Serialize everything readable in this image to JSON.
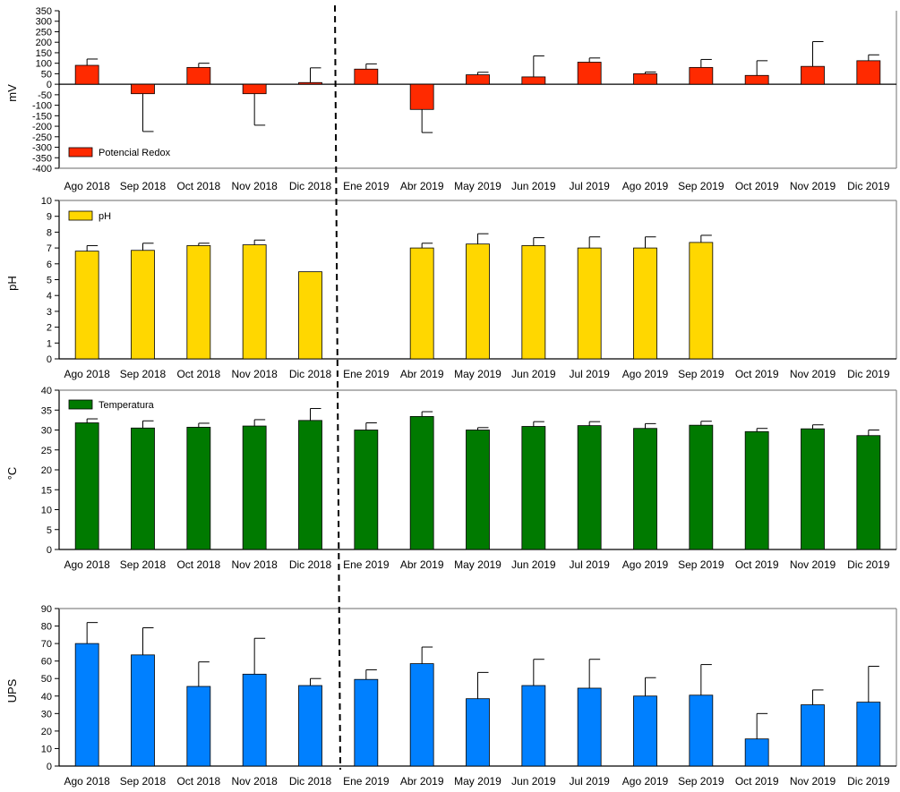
{
  "chart_data": [
    {
      "type": "bar",
      "ylabel": "mV",
      "legend": "Potencial Redox",
      "legend_position": "bottom-left",
      "color": "#ff2a00",
      "ylim": [
        -400,
        350
      ],
      "yticks": [
        -400,
        -350,
        -300,
        -250,
        -200,
        -150,
        -100,
        -50,
        0,
        50,
        100,
        150,
        200,
        250,
        300,
        350
      ],
      "categories": [
        "Ago 2018",
        "Sep 2018",
        "Oct 2018",
        "Nov 2018",
        "Dic 2018",
        "Ene 2019",
        "Abr 2019",
        "May 2019",
        "Jun 2019",
        "Jul 2019",
        "Ago 2019",
        "Sep 2019",
        "Oct 2019",
        "Nov 2019",
        "Dic 2019"
      ],
      "values": [
        90,
        -45,
        80,
        -45,
        8,
        72,
        -120,
        45,
        35,
        105,
        50,
        80,
        42,
        85,
        112
      ],
      "errors": [
        30,
        180,
        20,
        150,
        70,
        25,
        110,
        12,
        100,
        20,
        8,
        38,
        70,
        118,
        28
      ]
    },
    {
      "type": "bar",
      "ylabel": "pH",
      "legend": "pH",
      "legend_position": "top-left",
      "color": "#ffd700",
      "ylim": [
        0,
        10
      ],
      "yticks": [
        0,
        1,
        2,
        3,
        4,
        5,
        6,
        7,
        8,
        9,
        10
      ],
      "categories": [
        "Ago 2018",
        "Sep 2018",
        "Oct 2018",
        "Nov 2018",
        "Dic 2018",
        "Ene 2019",
        "Abr 2019",
        "May 2019",
        "Jun 2019",
        "Jul 2019",
        "Ago 2019",
        "Sep 2019",
        "Oct 2019",
        "Nov 2019",
        "Dic 2019"
      ],
      "values": [
        6.8,
        6.85,
        7.15,
        7.2,
        5.5,
        null,
        7.0,
        7.25,
        7.15,
        7.0,
        7.0,
        7.35,
        null,
        null,
        null
      ],
      "errors": [
        0.35,
        0.45,
        0.15,
        0.3,
        null,
        null,
        0.3,
        0.65,
        0.5,
        0.7,
        0.7,
        0.45,
        null,
        null,
        null
      ]
    },
    {
      "type": "bar",
      "ylabel": "°C",
      "legend": "Temperatura",
      "legend_position": "top-left",
      "color": "#007a00",
      "ylim": [
        0,
        40
      ],
      "yticks": [
        0,
        5,
        10,
        15,
        20,
        25,
        30,
        35,
        40
      ],
      "categories": [
        "Ago 2018",
        "Sep 2018",
        "Oct 2018",
        "Nov 2018",
        "Dic 2018",
        "Ene 2019",
        "Abr 2019",
        "May 2019",
        "Jun 2019",
        "Jul 2019",
        "Ago 2019",
        "Sep 2019",
        "Oct 2019",
        "Nov 2019",
        "Dic 2019"
      ],
      "values": [
        31.8,
        30.5,
        30.7,
        31.0,
        32.4,
        30.0,
        33.4,
        30.0,
        30.9,
        31.1,
        30.4,
        31.2,
        29.6,
        30.3,
        28.6
      ],
      "errors": [
        1.0,
        1.8,
        1.0,
        1.6,
        3.0,
        1.8,
        1.2,
        0.6,
        1.2,
        1.0,
        1.2,
        1.0,
        0.8,
        1.0,
        1.4
      ]
    },
    {
      "type": "bar",
      "ylabel": "UPS",
      "legend": "",
      "color": "#0080ff",
      "ylim": [
        0,
        90
      ],
      "yticks": [
        0,
        10,
        20,
        30,
        40,
        50,
        60,
        70,
        80,
        90
      ],
      "categories": [
        "Ago 2018",
        "Sep 2018",
        "Oct 2018",
        "Nov 2018",
        "Dic 2018",
        "Ene 2019",
        "Abr 2019",
        "May 2019",
        "Jun 2019",
        "Jul 2019",
        "Ago 2019",
        "Sep 2019",
        "Oct 2019",
        "Nov 2019",
        "Dic 2019"
      ],
      "values": [
        70,
        63.5,
        45.5,
        52.5,
        46,
        49.5,
        58.5,
        38.5,
        46,
        44.5,
        40,
        40.5,
        15.5,
        35,
        36.5
      ],
      "errors": [
        12,
        15.5,
        14,
        20.5,
        4,
        5.5,
        9.5,
        15,
        15,
        16.5,
        10.5,
        17.5,
        14.5,
        8.5,
        20.5
      ]
    }
  ]
}
